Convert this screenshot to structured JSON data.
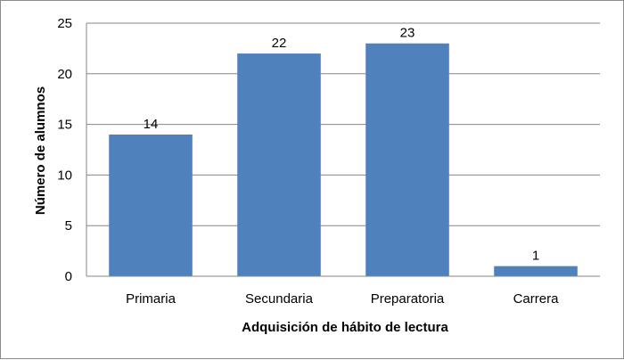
{
  "chart_data": {
    "type": "bar",
    "title": "",
    "xlabel": "Adquisición de hábito de lectura",
    "ylabel": "Número de alumnos",
    "categories": [
      "Primaria",
      "Secundaria",
      "Preparatoria",
      "Carrera"
    ],
    "values": [
      14,
      22,
      23,
      1
    ],
    "ylim": [
      0,
      25
    ],
    "yticks": [
      "0",
      "5",
      "10",
      "15",
      "20",
      "25"
    ],
    "grid": true,
    "legend": "none",
    "bar_color": "#4F81BD",
    "grid_color": "#868686"
  }
}
